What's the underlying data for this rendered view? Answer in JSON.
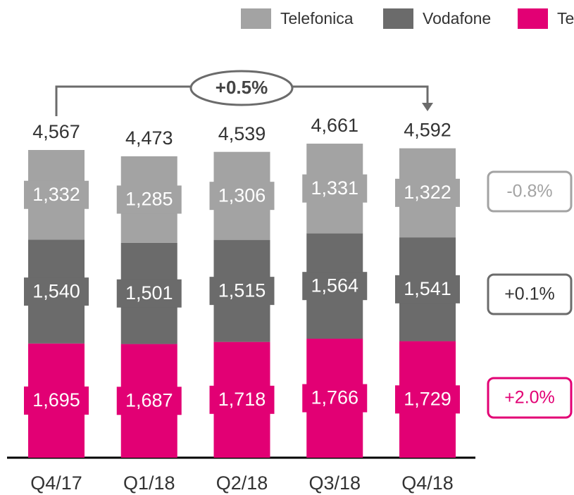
{
  "chart_data": {
    "type": "stacked_bar",
    "categories": [
      "Q4/17",
      "Q1/18",
      "Q2/18",
      "Q3/18",
      "Q4/18"
    ],
    "series": [
      {
        "name": "Te",
        "color": "#e20074",
        "values": [
          1695,
          1687,
          1718,
          1766,
          1729
        ],
        "value_labels": [
          "1,695",
          "1,687",
          "1,718",
          "1,766",
          "1,729"
        ],
        "change": "+2.0%"
      },
      {
        "name": "Vodafone",
        "color": "#6b6b6b",
        "values": [
          1540,
          1501,
          1515,
          1564,
          1541
        ],
        "value_labels": [
          "1,540",
          "1,501",
          "1,515",
          "1,564",
          "1,541"
        ],
        "change": "+0.1%"
      },
      {
        "name": "Telefonica",
        "color": "#a3a3a3",
        "values": [
          1332,
          1285,
          1306,
          1331,
          1322
        ],
        "value_labels": [
          "1,332",
          "1,285",
          "1,306",
          "1,331",
          "1,322"
        ],
        "change": "-0.8%"
      }
    ],
    "totals": {
      "values": [
        4567,
        4473,
        4539,
        4661,
        4592
      ],
      "value_labels": [
        "4,567",
        "4,473",
        "4,539",
        "4,661",
        "4,592"
      ]
    },
    "annotation": "+0.5%",
    "legend": "top-right"
  }
}
